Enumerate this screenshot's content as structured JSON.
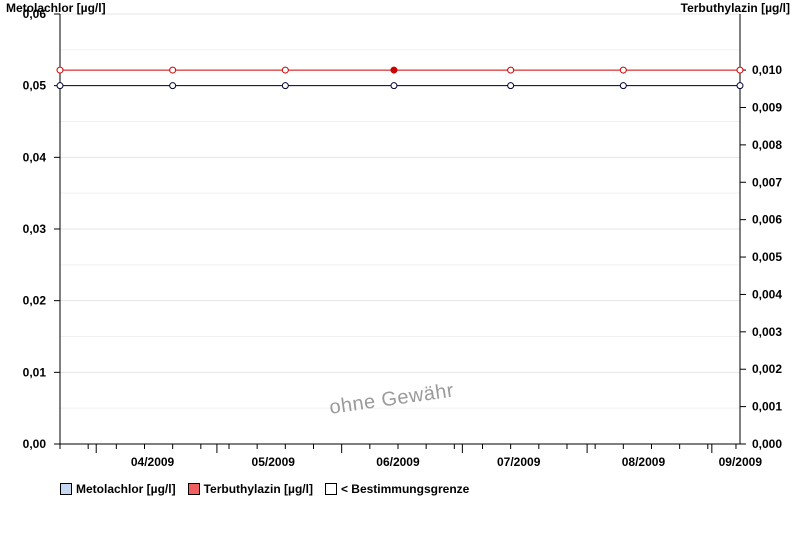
{
  "chart_data": {
    "type": "line",
    "y_left_label": "Metolachlor [µg/l]",
    "y_right_label": "Terbuthylazin [µg/l]",
    "y_left_lim": [
      0,
      0.06
    ],
    "y_left_ticks": [
      "0,00",
      "0,01",
      "0,02",
      "0,03",
      "0,04",
      "0,05",
      "0,06"
    ],
    "y_right_lim": [
      0,
      0.0115
    ],
    "y_right_ticks": [
      "0,000",
      "0,001",
      "0,002",
      "0,003",
      "0,004",
      "0,005",
      "0,006",
      "0,007",
      "0,008",
      "0,009",
      "0,010"
    ],
    "x_tick_labels": [
      "04/2009",
      "05/2009",
      "06/2009",
      "07/2009",
      "08/2009",
      "09/2009"
    ],
    "grid": true,
    "legend_position": "bottom-left",
    "series": [
      {
        "name": "Terbuthylazin [µg/l]",
        "axis": "right",
        "color": "#cc0000",
        "points": [
          {
            "x": "2009-03-23",
            "y": 0.01,
            "below_limit": true
          },
          {
            "x": "2009-04-20",
            "y": 0.01,
            "below_limit": true
          },
          {
            "x": "2009-05-18",
            "y": 0.01,
            "below_limit": true
          },
          {
            "x": "2009-06-14",
            "y": 0.01,
            "below_limit": false
          },
          {
            "x": "2009-07-13",
            "y": 0.01,
            "below_limit": true
          },
          {
            "x": "2009-08-10",
            "y": 0.01,
            "below_limit": true
          },
          {
            "x": "2009-09-08",
            "y": 0.01,
            "below_limit": true
          }
        ]
      },
      {
        "name": "Metolachlor [µg/l]",
        "axis": "left",
        "color": "#000033",
        "points": [
          {
            "x": "2009-03-23",
            "y": 0.05,
            "below_limit": true
          },
          {
            "x": "2009-04-20",
            "y": 0.05,
            "below_limit": true
          },
          {
            "x": "2009-05-18",
            "y": 0.05,
            "below_limit": true
          },
          {
            "x": "2009-06-14",
            "y": 0.05,
            "below_limit": true
          },
          {
            "x": "2009-07-13",
            "y": 0.05,
            "below_limit": true
          },
          {
            "x": "2009-08-10",
            "y": 0.05,
            "below_limit": true
          },
          {
            "x": "2009-09-08",
            "y": 0.05,
            "below_limit": true
          }
        ]
      }
    ]
  },
  "legend": {
    "metolachlor": {
      "label": "Metolachlor [µg/l]",
      "color": "#c6d7f2"
    },
    "terbuthylazin": {
      "label": "Terbuthylazin [µg/l]",
      "color": "#f06060"
    },
    "bestimmungsgrenze": {
      "label": "< Bestimmungsgrenze",
      "color": "#ffffff"
    }
  },
  "watermark": "ohne Gewähr"
}
